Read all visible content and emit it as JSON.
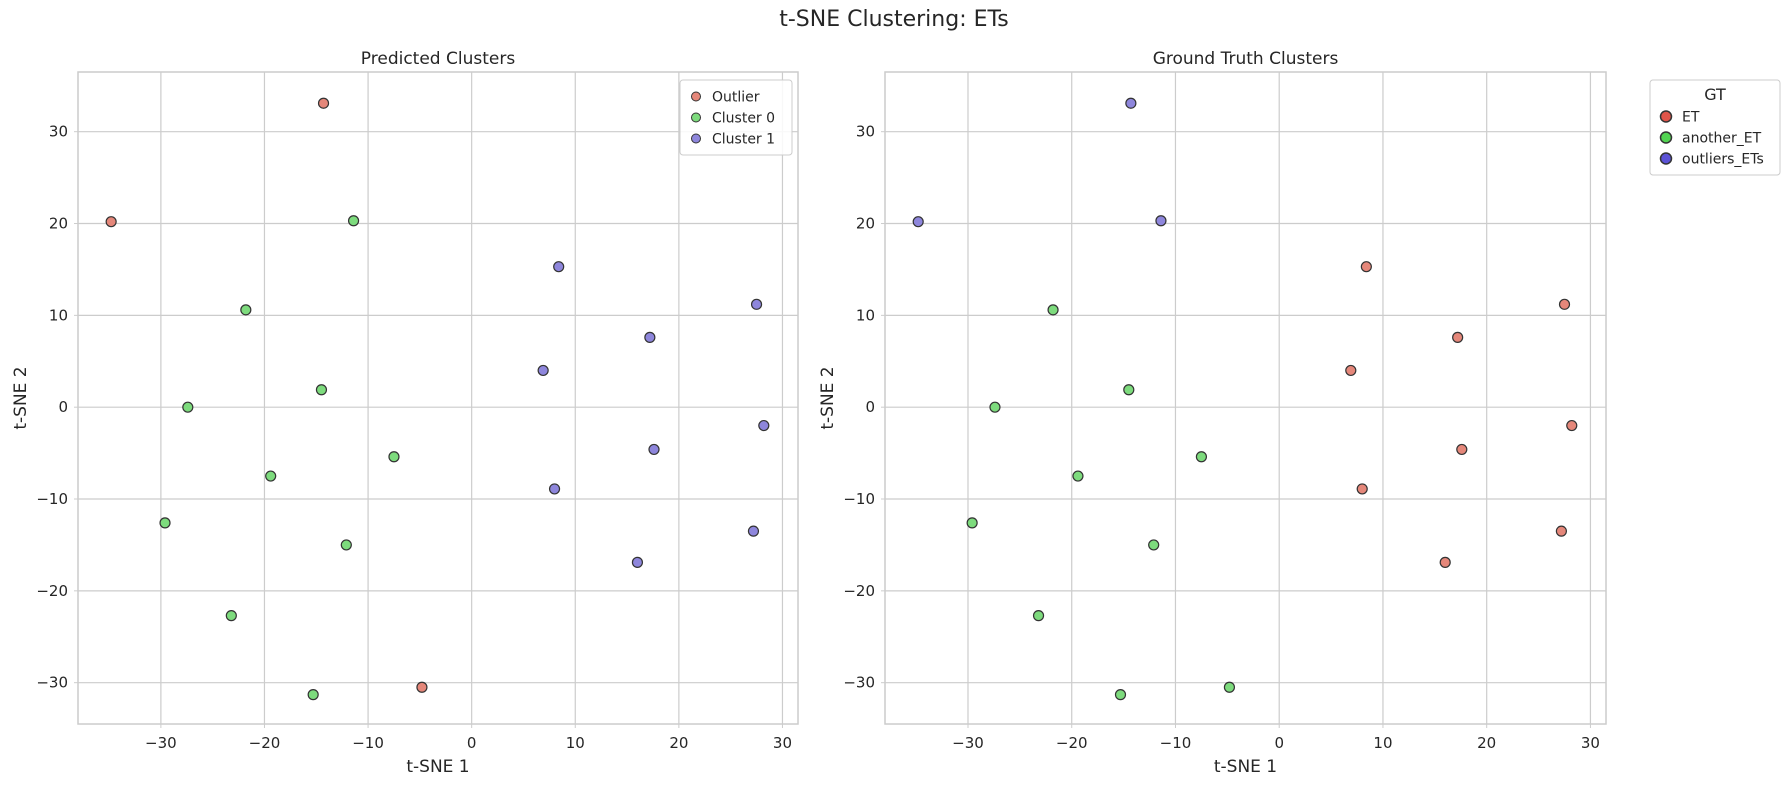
{
  "figure_title": "t-SNE Clustering: ETs",
  "colors": {
    "red_point": "#e5877a",
    "green_point": "#7ddb7d",
    "blue_point": "#8e86dc",
    "red_legend": "#e0554a",
    "green_legend": "#52d452",
    "blue_legend": "#5b52d6",
    "edge": "#333333",
    "grid": "#cccccc",
    "frame": "#cccccc"
  },
  "chart_data": [
    {
      "type": "scatter",
      "title": "Predicted Clusters",
      "xlabel": "t-SNE 1",
      "ylabel": "t-SNE 2",
      "xlim": [
        -38,
        31.5
      ],
      "ylim": [
        -34.5,
        36.5
      ],
      "xticks": [
        -30,
        -20,
        -10,
        0,
        10,
        20,
        30
      ],
      "yticks": [
        -30,
        -20,
        -10,
        0,
        10,
        20,
        30
      ],
      "grid": true,
      "legend": {
        "placement": "top-right",
        "title": "",
        "entries": [
          {
            "label": "Outlier",
            "color_key": "red_point"
          },
          {
            "label": "Cluster 0",
            "color_key": "green_point"
          },
          {
            "label": "Cluster 1",
            "color_key": "blue_point"
          }
        ]
      },
      "series": [
        {
          "name": "Outlier",
          "color_key": "red_point",
          "points": [
            [
              -14.3,
              33.1
            ],
            [
              -34.8,
              20.2
            ],
            [
              -4.8,
              -30.5
            ]
          ]
        },
        {
          "name": "Cluster 0",
          "color_key": "green_point",
          "points": [
            [
              -11.4,
              20.3
            ],
            [
              -21.8,
              10.6
            ],
            [
              -14.5,
              1.9
            ],
            [
              -27.4,
              0.0
            ],
            [
              -7.5,
              -5.4
            ],
            [
              -19.4,
              -7.5
            ],
            [
              -29.6,
              -12.6
            ],
            [
              -12.1,
              -15.0
            ],
            [
              -23.2,
              -22.7
            ],
            [
              -15.3,
              -31.3
            ]
          ]
        },
        {
          "name": "Cluster 1",
          "color_key": "blue_point",
          "points": [
            [
              8.4,
              15.3
            ],
            [
              27.5,
              11.2
            ],
            [
              17.2,
              7.6
            ],
            [
              6.9,
              4.0
            ],
            [
              28.2,
              -2.0
            ],
            [
              17.6,
              -4.6
            ],
            [
              8.0,
              -8.9
            ],
            [
              27.2,
              -13.5
            ],
            [
              16.0,
              -16.9
            ]
          ]
        }
      ]
    },
    {
      "type": "scatter",
      "title": "Ground Truth Clusters",
      "xlabel": "t-SNE 1",
      "ylabel": "t-SNE 2",
      "xlim": [
        -38,
        31.5
      ],
      "ylim": [
        -34.5,
        36.5
      ],
      "xticks": [
        -30,
        -20,
        -10,
        0,
        10,
        20,
        30
      ],
      "yticks": [
        -30,
        -20,
        -10,
        0,
        10,
        20,
        30
      ],
      "grid": true,
      "legend": {
        "placement": "outside-right",
        "title": "GT",
        "entries": [
          {
            "label": "ET",
            "color_key": "red_legend"
          },
          {
            "label": "another_ET",
            "color_key": "green_legend"
          },
          {
            "label": "outliers_ETs",
            "color_key": "blue_legend"
          }
        ]
      },
      "series": [
        {
          "name": "ET",
          "color_key": "red_point",
          "points": [
            [
              8.4,
              15.3
            ],
            [
              27.5,
              11.2
            ],
            [
              17.2,
              7.6
            ],
            [
              6.9,
              4.0
            ],
            [
              28.2,
              -2.0
            ],
            [
              17.6,
              -4.6
            ],
            [
              8.0,
              -8.9
            ],
            [
              27.2,
              -13.5
            ],
            [
              16.0,
              -16.9
            ]
          ]
        },
        {
          "name": "another_ET",
          "color_key": "green_point",
          "points": [
            [
              -21.8,
              10.6
            ],
            [
              -14.5,
              1.9
            ],
            [
              -27.4,
              0.0
            ],
            [
              -7.5,
              -5.4
            ],
            [
              -19.4,
              -7.5
            ],
            [
              -29.6,
              -12.6
            ],
            [
              -12.1,
              -15.0
            ],
            [
              -23.2,
              -22.7
            ],
            [
              -15.3,
              -31.3
            ],
            [
              -4.8,
              -30.5
            ]
          ]
        },
        {
          "name": "outliers_ETs",
          "color_key": "blue_point",
          "points": [
            [
              -14.3,
              33.1
            ],
            [
              -34.8,
              20.2
            ],
            [
              -11.4,
              20.3
            ]
          ]
        }
      ]
    }
  ]
}
